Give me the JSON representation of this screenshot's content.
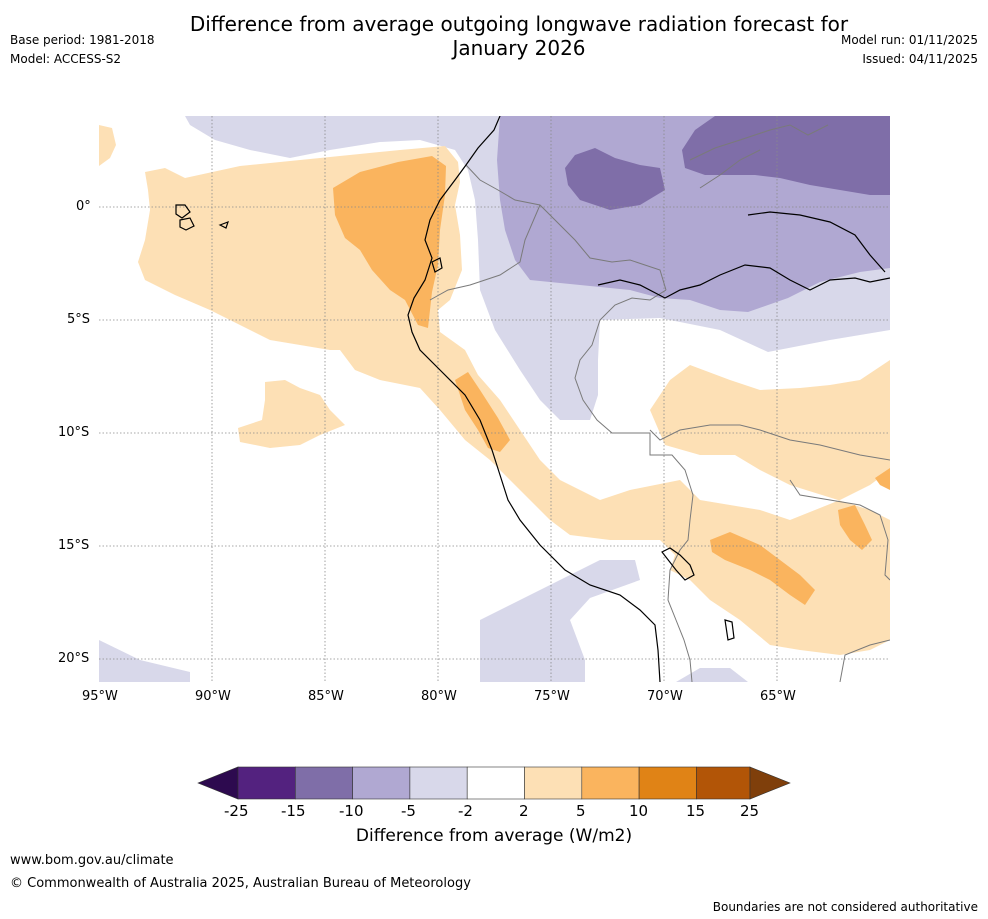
{
  "title_line1": "Difference from average outgoing longwave radiation forecast for",
  "title_line2": "January 2026",
  "base_period": "Base period: 1981-2018",
  "model": "Model: ACCESS-S2",
  "model_run": "Model run: 01/11/2025",
  "issued": "Issued: 04/11/2025",
  "map": {
    "lat_labels": [
      "0°",
      "5°S",
      "10°S",
      "15°S",
      "20°S"
    ],
    "lon_labels": [
      "95°W",
      "90°W",
      "85°W",
      "80°W",
      "75°W",
      "70°W",
      "65°W"
    ]
  },
  "colorbar": {
    "title": "Difference from average (W/m2)",
    "ticks": [
      "-25",
      "-15",
      "-10",
      "-5",
      "-2",
      "2",
      "5",
      "10",
      "15",
      "25"
    ],
    "colors": {
      "below_min": "#2d0a4f",
      "m25_m15": "#53227f",
      "m15_m10": "#7f6ea8",
      "m10_m5": "#b0a8d2",
      "m5_m2": "#d8d8ea",
      "m2_p2": "#ffffff",
      "p2_p5": "#fde0b5",
      "p5_p10": "#fab45e",
      "p10_p15": "#e08316",
      "p15_p25": "#b25507",
      "above_max": "#7f3f0b"
    }
  },
  "footer": {
    "website": "www.bom.gov.au/climate",
    "copyright": "© Commonwealth of Australia 2025, Australian Bureau of Meteorology",
    "disclaimer": "Boundaries are not considered authoritative"
  }
}
